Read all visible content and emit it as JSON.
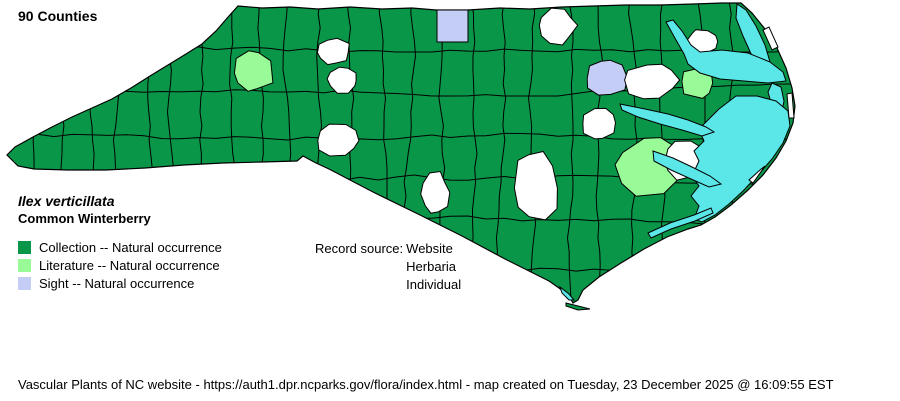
{
  "header": {
    "title": "90 Counties"
  },
  "species": {
    "scientific_name": "Ilex verticillata",
    "common_name": "Common Winterberry"
  },
  "legend": {
    "items": [
      {
        "label": "Collection -- Natural occurrence",
        "status": "collection",
        "color": "#0A9648"
      },
      {
        "label": "Literature -- Natural occurrence",
        "status": "literature",
        "color": "#98FB98"
      },
      {
        "label": "Sight -- Natural occurrence",
        "status": "sight",
        "color": "#C3CDF5"
      }
    ]
  },
  "record_source": {
    "label": "Record source:",
    "values": [
      "Website",
      "Herbaria",
      "Individual"
    ]
  },
  "footer": {
    "text": "Vascular Plants of NC website - https://auth1.dpr.ncparks.gov/flora/index.html - map created on Tuesday, 23 December 2025 @ 16:09:55 EST"
  },
  "map": {
    "region_label": "North Carolina county distribution map",
    "colors": {
      "collection": "#0A9648",
      "literature": "#98FB98",
      "sight": "#C3CDF5",
      "not_recorded": "#FFFFFF",
      "water": "#5BE6E8",
      "border": "#000000"
    }
  }
}
